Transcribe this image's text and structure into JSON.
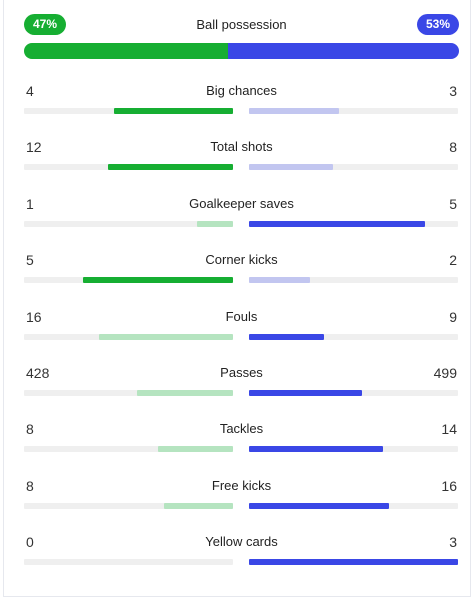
{
  "colors": {
    "home_strong": "#16ae32",
    "home_light": "#b5e4c0",
    "away_strong": "#3a47e6",
    "away_light": "#c2c6f0"
  },
  "possession": {
    "label": "Ball possession",
    "home_text": "47%",
    "away_text": "53%",
    "home": 47,
    "away": 53
  },
  "stats": [
    {
      "label": "Big chances",
      "home_text": "4",
      "away_text": "3",
      "home": 4,
      "away": 3,
      "home_frac": 0.57,
      "away_frac": 0.43,
      "winner": "home"
    },
    {
      "label": "Total shots",
      "home_text": "12",
      "away_text": "8",
      "home": 12,
      "away": 8,
      "home_frac": 0.6,
      "away_frac": 0.4,
      "winner": "home"
    },
    {
      "label": "Goalkeeper saves",
      "home_text": "1",
      "away_text": "5",
      "home": 1,
      "away": 5,
      "home_frac": 0.17,
      "away_frac": 0.84,
      "winner": "away"
    },
    {
      "label": "Corner kicks",
      "home_text": "5",
      "away_text": "2",
      "home": 5,
      "away": 2,
      "home_frac": 0.72,
      "away_frac": 0.29,
      "winner": "home"
    },
    {
      "label": "Fouls",
      "home_text": "16",
      "away_text": "9",
      "home": 16,
      "away": 9,
      "home_frac": 0.64,
      "away_frac": 0.36,
      "winner": "away"
    },
    {
      "label": "Passes",
      "home_text": "428",
      "away_text": "499",
      "home": 428,
      "away": 499,
      "home_frac": 0.46,
      "away_frac": 0.54,
      "winner": "away"
    },
    {
      "label": "Tackles",
      "home_text": "8",
      "away_text": "14",
      "home": 8,
      "away": 14,
      "home_frac": 0.36,
      "away_frac": 0.64,
      "winner": "away"
    },
    {
      "label": "Free kicks",
      "home_text": "8",
      "away_text": "16",
      "home": 8,
      "away": 16,
      "home_frac": 0.33,
      "away_frac": 0.67,
      "winner": "away"
    },
    {
      "label": "Yellow cards",
      "home_text": "0",
      "away_text": "3",
      "home": 0,
      "away": 3,
      "home_frac": 0.0,
      "away_frac": 1.0,
      "winner": "away"
    }
  ]
}
